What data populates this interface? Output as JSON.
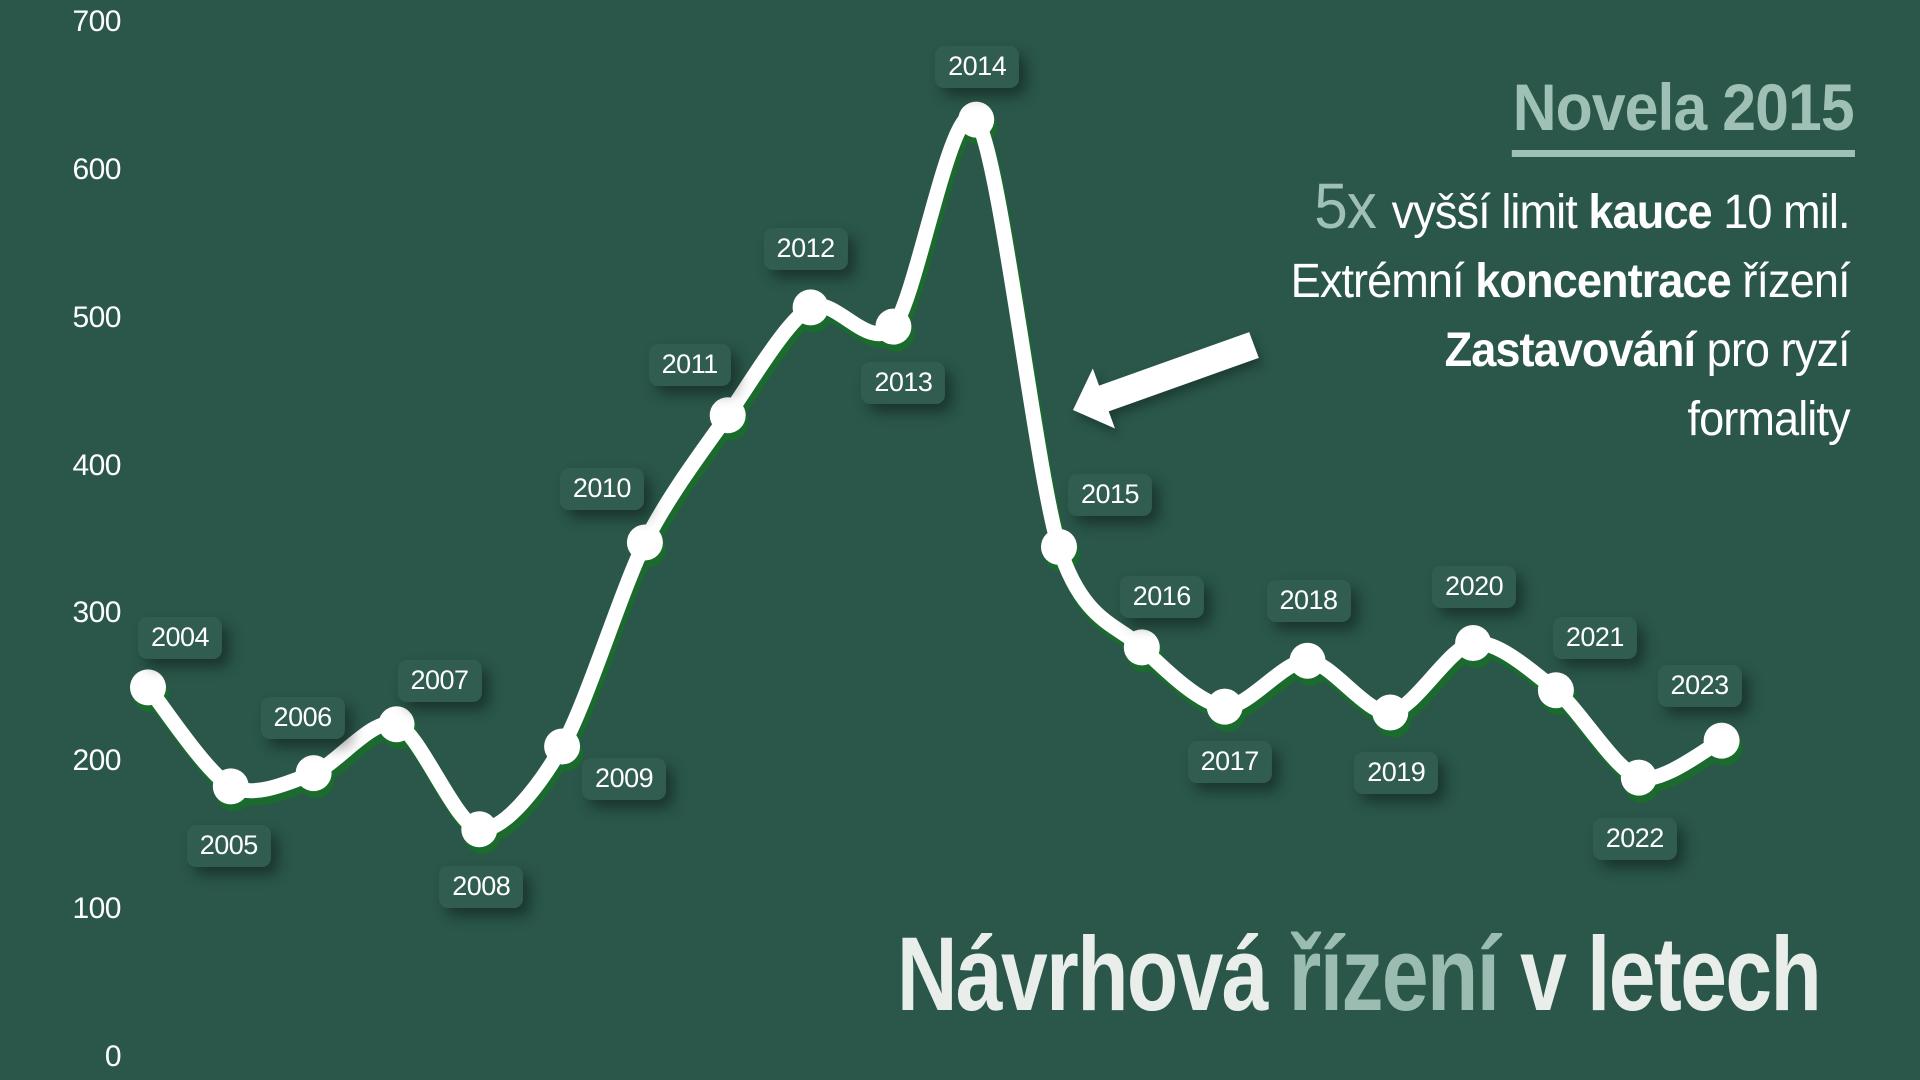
{
  "page": {
    "background_color": "#2a574a",
    "accent_color": "#9fc0b4",
    "title_accent_color": "#9bbcb0",
    "text_color": "#ffffff",
    "label_pill_color": "#305d4f",
    "line_shadow_color": "#1a6b2d"
  },
  "chart_data": {
    "type": "line",
    "title": "Návrhová řízení v letech",
    "title_parts": [
      {
        "text": "Návrhová ",
        "style": "base"
      },
      {
        "text": "řízení",
        "style": "accent"
      },
      {
        "text": " v letech",
        "style": "base"
      }
    ],
    "x": [
      2004,
      2005,
      2006,
      2007,
      2008,
      2009,
      2010,
      2011,
      2012,
      2013,
      2014,
      2015,
      2016,
      2017,
      2018,
      2019,
      2020,
      2021,
      2022,
      2023
    ],
    "values": [
      250,
      183,
      192,
      225,
      154,
      210,
      348,
      434,
      507,
      494,
      634,
      345,
      277,
      237,
      268,
      233,
      280,
      248,
      189,
      214
    ],
    "ylim": [
      0,
      700
    ],
    "yticks": [
      0,
      100,
      200,
      300,
      400,
      500,
      600,
      700
    ],
    "grid": false,
    "legend": "none",
    "line_color": "#ffffff",
    "marker": "circle",
    "point_label_style": "year in rounded pill near each point"
  },
  "annotation": {
    "heading": "Novela 2015",
    "lines": [
      {
        "segments": [
          {
            "text": "5x ",
            "style": "accent-large"
          },
          {
            "text": "vyšší limit ",
            "style": "normal"
          },
          {
            "text": "kauce",
            "style": "bold"
          },
          {
            "text": " 10 mil.",
            "style": "normal"
          }
        ]
      },
      {
        "segments": [
          {
            "text": "Extrémní ",
            "style": "normal"
          },
          {
            "text": "koncentrace",
            "style": "bold"
          },
          {
            "text": " řízení",
            "style": "normal"
          }
        ]
      },
      {
        "segments": [
          {
            "text": "Zastavování",
            "style": "bold"
          },
          {
            "text": " pro ryzí",
            "style": "normal"
          }
        ]
      },
      {
        "segments": [
          {
            "text": "formality",
            "style": "normal"
          }
        ]
      }
    ],
    "arrow_points_at": "2015"
  }
}
